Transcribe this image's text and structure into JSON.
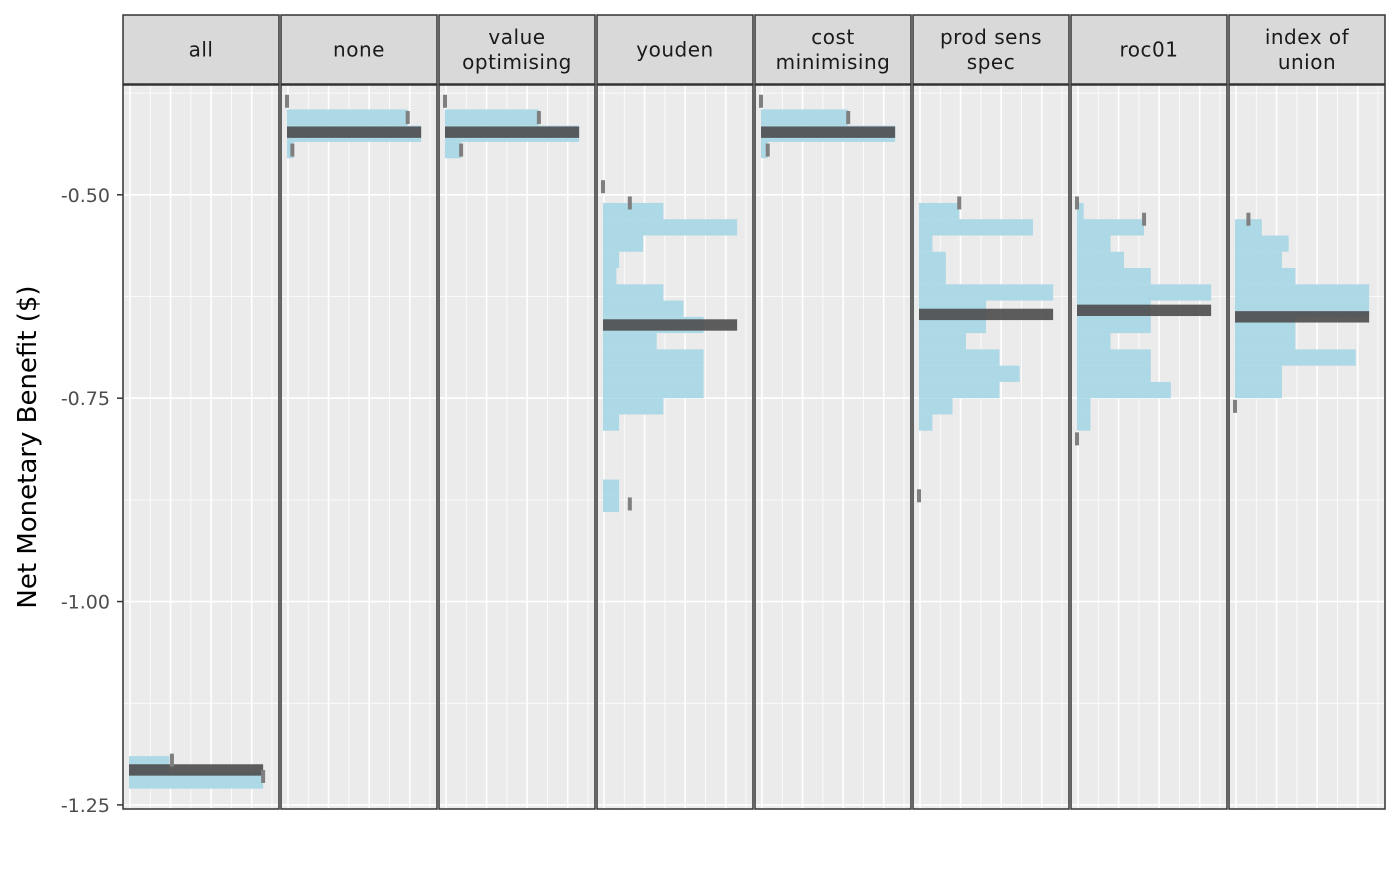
{
  "chart_data": {
    "type": "bar",
    "subtype": "faceted horizontal histograms of simulated net monetary benefit per cutpoint method",
    "ylabel": "Net Monetary Benefit ($)",
    "xlabel": "",
    "ylim": [
      -1.255,
      -0.365
    ],
    "yticks": [
      -0.5,
      -0.75,
      -1.0,
      -1.25
    ],
    "ytick_labels": [
      "-0.50",
      "-0.75",
      "-1.00",
      "-1.25"
    ],
    "bin_width": 0.02,
    "grid": true,
    "colors": {
      "panel_bg": "#ebebeb",
      "grid": "#ffffff",
      "strip_bg": "#d9d9d9",
      "border": "#333333",
      "histogram": "#add8e6",
      "median_band": "#4d4d4d",
      "interval_marker": "#7f7f7f"
    },
    "facets": [
      {
        "label": [
          "all"
        ],
        "bins": [
          {
            "y": -1.2,
            "count": 0.3
          },
          {
            "y": -1.22,
            "count": 1.0
          }
        ],
        "median": -1.207,
        "interval_markers": [
          {
            "y": -1.195,
            "pos": 0.32
          },
          {
            "y": -1.215,
            "pos": 1.0
          }
        ]
      },
      {
        "label": [
          "none"
        ],
        "bins": [
          {
            "y": -0.405,
            "count": 0.9
          },
          {
            "y": -0.425,
            "count": 1.0
          },
          {
            "y": -0.445,
            "count": 0.05
          }
        ],
        "median": -0.423,
        "interval_markers": [
          {
            "y": -0.385,
            "pos": 0.0
          },
          {
            "y": -0.405,
            "pos": 0.9
          },
          {
            "y": -0.445,
            "pos": 0.04
          }
        ]
      },
      {
        "label": [
          "value",
          "optimising"
        ],
        "bins": [
          {
            "y": -0.405,
            "count": 0.7
          },
          {
            "y": -0.425,
            "count": 1.0
          },
          {
            "y": -0.445,
            "count": 0.12
          }
        ],
        "median": -0.423,
        "interval_markers": [
          {
            "y": -0.385,
            "pos": 0.0
          },
          {
            "y": -0.405,
            "pos": 0.7
          },
          {
            "y": -0.445,
            "pos": 0.12
          }
        ]
      },
      {
        "label": [
          "youden"
        ],
        "bins": [
          {
            "y": -0.52,
            "count": 0.45
          },
          {
            "y": -0.54,
            "count": 1.0
          },
          {
            "y": -0.56,
            "count": 0.3
          },
          {
            "y": -0.58,
            "count": 0.12
          },
          {
            "y": -0.6,
            "count": 0.1
          },
          {
            "y": -0.62,
            "count": 0.45
          },
          {
            "y": -0.64,
            "count": 0.6
          },
          {
            "y": -0.66,
            "count": 0.75
          },
          {
            "y": -0.68,
            "count": 0.4
          },
          {
            "y": -0.7,
            "count": 0.75
          },
          {
            "y": -0.72,
            "count": 0.75
          },
          {
            "y": -0.74,
            "count": 0.75
          },
          {
            "y": -0.76,
            "count": 0.45
          },
          {
            "y": -0.78,
            "count": 0.12
          },
          {
            "y": -0.86,
            "count": 0.12
          },
          {
            "y": -0.88,
            "count": 0.12
          }
        ],
        "median": -0.66,
        "interval_markers": [
          {
            "y": -0.49,
            "pos": 0.0
          },
          {
            "y": -0.51,
            "pos": 0.2
          },
          {
            "y": -0.88,
            "pos": 0.2
          }
        ]
      },
      {
        "label": [
          "cost",
          "minimising"
        ],
        "bins": [
          {
            "y": -0.405,
            "count": 0.65
          },
          {
            "y": -0.425,
            "count": 1.0
          },
          {
            "y": -0.445,
            "count": 0.05
          }
        ],
        "median": -0.423,
        "interval_markers": [
          {
            "y": -0.385,
            "pos": 0.0
          },
          {
            "y": -0.405,
            "pos": 0.65
          },
          {
            "y": -0.445,
            "pos": 0.05
          }
        ]
      },
      {
        "label": [
          "prod sens",
          "spec"
        ],
        "bins": [
          {
            "y": -0.52,
            "count": 0.3
          },
          {
            "y": -0.54,
            "count": 0.85
          },
          {
            "y": -0.56,
            "count": 0.1
          },
          {
            "y": -0.58,
            "count": 0.2
          },
          {
            "y": -0.6,
            "count": 0.2
          },
          {
            "y": -0.62,
            "count": 1.0
          },
          {
            "y": -0.64,
            "count": 0.5
          },
          {
            "y": -0.66,
            "count": 0.5
          },
          {
            "y": -0.68,
            "count": 0.35
          },
          {
            "y": -0.7,
            "count": 0.6
          },
          {
            "y": -0.72,
            "count": 0.75
          },
          {
            "y": -0.74,
            "count": 0.6
          },
          {
            "y": -0.76,
            "count": 0.25
          },
          {
            "y": -0.78,
            "count": 0.1
          }
        ],
        "median": -0.647,
        "interval_markers": [
          {
            "y": -0.51,
            "pos": 0.3
          },
          {
            "y": -0.87,
            "pos": 0.0
          }
        ]
      },
      {
        "label": [
          "roc01"
        ],
        "bins": [
          {
            "y": -0.52,
            "count": 0.05
          },
          {
            "y": -0.54,
            "count": 0.5
          },
          {
            "y": -0.56,
            "count": 0.25
          },
          {
            "y": -0.58,
            "count": 0.35
          },
          {
            "y": -0.6,
            "count": 0.55
          },
          {
            "y": -0.62,
            "count": 1.0
          },
          {
            "y": -0.64,
            "count": 0.55
          },
          {
            "y": -0.66,
            "count": 0.55
          },
          {
            "y": -0.68,
            "count": 0.25
          },
          {
            "y": -0.7,
            "count": 0.55
          },
          {
            "y": -0.72,
            "count": 0.55
          },
          {
            "y": -0.74,
            "count": 0.7
          },
          {
            "y": -0.76,
            "count": 0.1
          },
          {
            "y": -0.78,
            "count": 0.1
          }
        ],
        "median": -0.642,
        "interval_markers": [
          {
            "y": -0.51,
            "pos": 0.0
          },
          {
            "y": -0.53,
            "pos": 0.5
          },
          {
            "y": -0.8,
            "pos": 0.0
          }
        ]
      },
      {
        "label": [
          "index of",
          "union"
        ],
        "bins": [
          {
            "y": -0.54,
            "count": 0.2
          },
          {
            "y": -0.56,
            "count": 0.4
          },
          {
            "y": -0.58,
            "count": 0.35
          },
          {
            "y": -0.6,
            "count": 0.45
          },
          {
            "y": -0.62,
            "count": 1.0
          },
          {
            "y": -0.64,
            "count": 1.0
          },
          {
            "y": -0.66,
            "count": 0.45
          },
          {
            "y": -0.68,
            "count": 0.45
          },
          {
            "y": -0.7,
            "count": 0.9
          },
          {
            "y": -0.72,
            "count": 0.35
          },
          {
            "y": -0.74,
            "count": 0.35
          }
        ],
        "median": -0.65,
        "interval_markers": [
          {
            "y": -0.53,
            "pos": 0.1
          },
          {
            "y": -0.76,
            "pos": 0.0
          }
        ]
      }
    ]
  }
}
